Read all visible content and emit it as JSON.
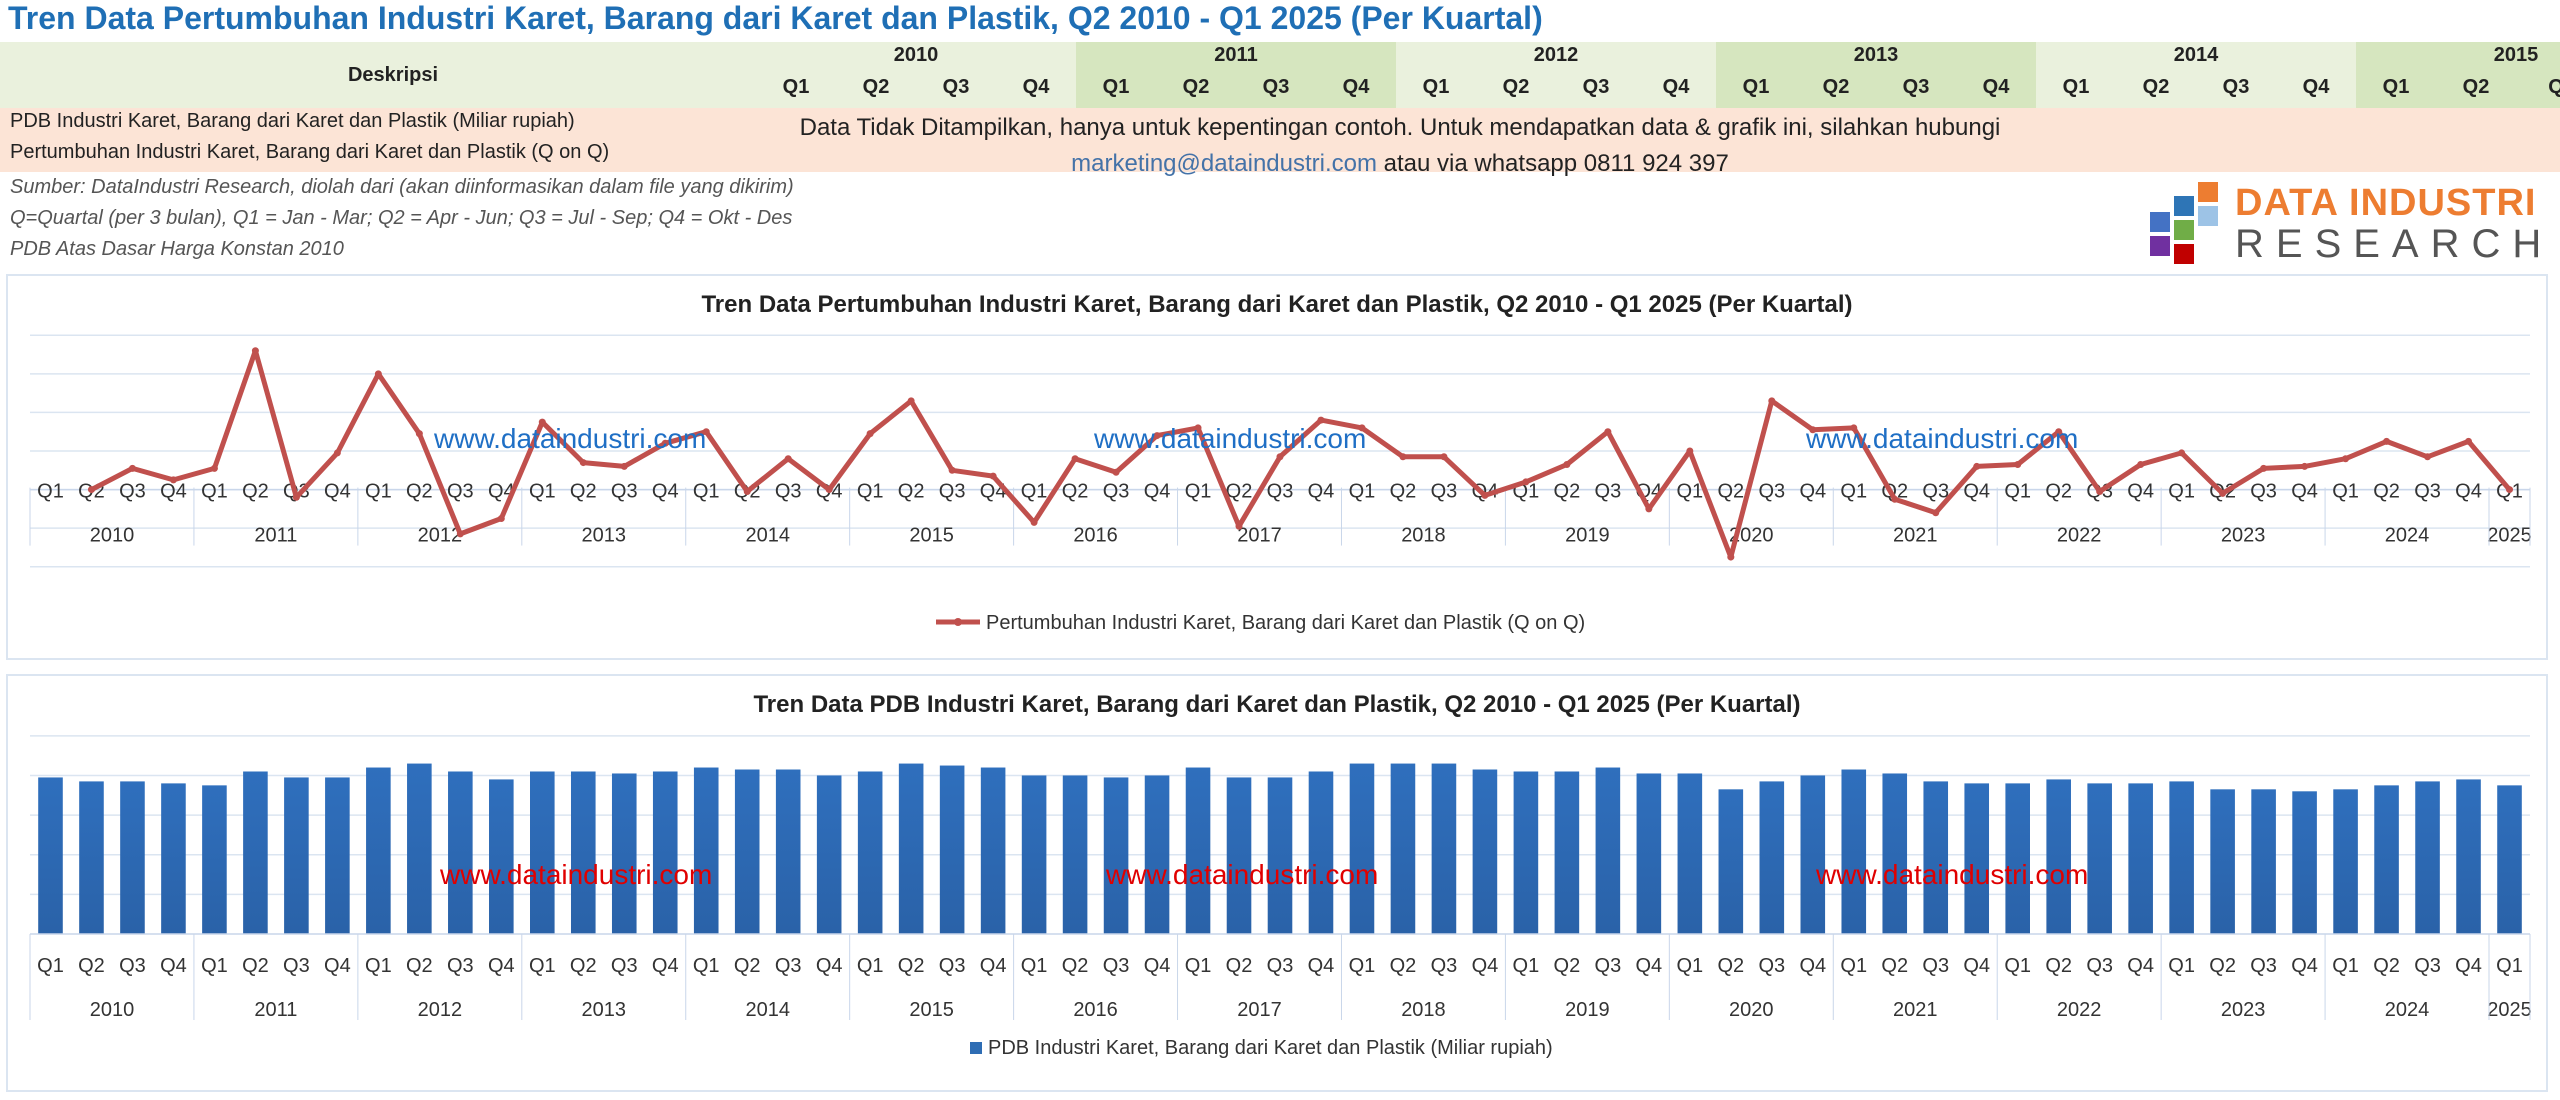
{
  "page_title": "Tren Data Pertumbuhan Industri Karet, Barang dari Karet dan Plastik, Q2 2010 - Q1 2025 (Per Kuartal)",
  "table": {
    "description_header": "Deskripsi",
    "years": [
      {
        "label": "2010",
        "quarters": [
          "Q1",
          "Q2",
          "Q3",
          "Q4"
        ]
      },
      {
        "label": "2011",
        "quarters": [
          "Q1",
          "Q2",
          "Q3",
          "Q4"
        ]
      },
      {
        "label": "2012",
        "quarters": [
          "Q1",
          "Q2",
          "Q3",
          "Q4"
        ]
      },
      {
        "label": "2013",
        "quarters": [
          "Q1",
          "Q2",
          "Q3",
          "Q4"
        ]
      },
      {
        "label": "2014",
        "quarters": [
          "Q1",
          "Q2",
          "Q3",
          "Q4"
        ]
      },
      {
        "label": "2015",
        "quarters": [
          "Q1",
          "Q2",
          "Q"
        ]
      }
    ],
    "rows": [
      "PDB Industri Karet, Barang dari Karet dan Plastik (Miliar rupiah)",
      "Pertumbuhan Industri Karet, Barang dari Karet dan Plastik (Q on Q)"
    ],
    "notice_line1": "Data Tidak Ditampilkan, hanya untuk kepentingan contoh. Untuk mendapatkan data & grafik  ini, silahkan hubungi",
    "notice_email": "marketing@dataindustri.com",
    "notice_line2_rest": " atau via whatsapp 0811 924 397"
  },
  "notes": [
    "Sumber: DataIndustri Research, diolah dari (akan diinformasikan dalam file yang dikirim)",
    "Q=Quartal (per 3 bulan), Q1 = Jan - Mar; Q2 = Apr - Jun; Q3 = Jul - Sep; Q4 = Okt - Des",
    "PDB Atas Dasar Harga Konstan 2010"
  ],
  "logo": {
    "line1": "DATA INDUSTRI",
    "line2": "RESEARCH",
    "colors": [
      "#2e75b6",
      "#ed7d31",
      "#70ad47",
      "#c00000",
      "#7030a0",
      "#4472c4"
    ]
  },
  "watermark_text": "www.dataindustri.com",
  "colors": {
    "line": "#c0504d",
    "bar": "#2e6db4",
    "watermark_blue": "#1f6fc5",
    "watermark_red": "#e00000",
    "title_blue": "#1f6fb5"
  },
  "chart_data": [
    {
      "type": "line",
      "title": "Tren Data Pertumbuhan Industri Karet, Barang dari Karet dan Plastik, Q2 2010 - Q1 2025 (Per Kuartal)",
      "legend": "Pertumbuhan Industri Karet, Barang dari Karet dan Plastik (Q on Q)",
      "year_labels": [
        "2010",
        "2011",
        "2012",
        "2013",
        "2014",
        "2015",
        "2016",
        "2017",
        "2018",
        "2019",
        "2020",
        "2021",
        "2022",
        "2023",
        "2024",
        "2025"
      ],
      "quarter_labels": [
        "Q1",
        "Q2",
        "Q3",
        "Q4",
        "Q1",
        "Q2",
        "Q3",
        "Q4",
        "Q1",
        "Q2",
        "Q3",
        "Q4",
        "Q1",
        "Q2",
        "Q3",
        "Q4",
        "Q1",
        "Q2",
        "Q3",
        "Q4",
        "Q1",
        "Q2",
        "Q3",
        "Q4",
        "Q1",
        "Q2",
        "Q3",
        "Q4",
        "Q1",
        "Q2",
        "Q3",
        "Q4",
        "Q1",
        "Q2",
        "Q3",
        "Q4",
        "Q1",
        "Q2",
        "Q3",
        "Q4",
        "Q1",
        "Q2",
        "Q3",
        "Q4",
        "Q1",
        "Q2",
        "Q3",
        "Q4",
        "Q1",
        "Q2",
        "Q3",
        "Q4",
        "Q1",
        "Q2",
        "Q3",
        "Q4",
        "Q1",
        "Q2",
        "Q3",
        "Q4",
        "Q1"
      ],
      "series": [
        {
          "values": [
            null,
            0,
            1.1,
            0.5,
            1.1,
            7.2,
            -0.4,
            1.9,
            6.0,
            2.9,
            -2.3,
            -1.5,
            3.5,
            1.4,
            1.2,
            2.4,
            3.0,
            -0.1,
            1.6,
            0,
            2.9,
            4.6,
            1.0,
            0.7,
            -1.7,
            1.6,
            0.9,
            2.8,
            3.2,
            -1.9,
            1.7,
            3.6,
            3.2,
            1.7,
            1.7,
            -0.3,
            0.4,
            1.3,
            3.0,
            -1.0,
            2.0,
            -3.5,
            4.6,
            3.1,
            3.2,
            -0.5,
            -1.2,
            1.2,
            1.3,
            3.0,
            -0.1,
            1.3,
            1.9,
            -0.2,
            1.1,
            1.2,
            1.6,
            2.5,
            1.7,
            2.5,
            0
          ]
        }
      ],
      "ylim": [
        -5,
        9
      ]
    },
    {
      "type": "bar",
      "title": "Tren Data PDB Industri Karet, Barang dari Karet dan Plastik, Q2 2010 - Q1 2025 (Per Kuartal)",
      "legend": "PDB Industri Karet, Barang dari Karet dan Plastik (Miliar rupiah)",
      "year_labels": [
        "2010",
        "2011",
        "2012",
        "2013",
        "2014",
        "2015",
        "2016",
        "2017",
        "2018",
        "2019",
        "2020",
        "2021",
        "2022",
        "2023",
        "2024",
        "2025"
      ],
      "quarter_labels": [
        "Q1",
        "Q2",
        "Q3",
        "Q4",
        "Q1",
        "Q2",
        "Q3",
        "Q4",
        "Q1",
        "Q2",
        "Q3",
        "Q4",
        "Q1",
        "Q2",
        "Q3",
        "Q4",
        "Q1",
        "Q2",
        "Q3",
        "Q4",
        "Q1",
        "Q2",
        "Q3",
        "Q4",
        "Q1",
        "Q2",
        "Q3",
        "Q4",
        "Q1",
        "Q2",
        "Q3",
        "Q4",
        "Q1",
        "Q2",
        "Q3",
        "Q4",
        "Q1",
        "Q2",
        "Q3",
        "Q4",
        "Q1",
        "Q2",
        "Q3",
        "Q4",
        "Q1",
        "Q2",
        "Q3",
        "Q4",
        "Q1",
        "Q2",
        "Q3",
        "Q4",
        "Q1",
        "Q2",
        "Q3",
        "Q4",
        "Q1",
        "Q2",
        "Q3",
        "Q4",
        "Q1"
      ],
      "series": [
        {
          "values": [
            79,
            77,
            77,
            76,
            75,
            82,
            79,
            79,
            84,
            86,
            82,
            78,
            82,
            82,
            81,
            82,
            84,
            83,
            83,
            80,
            82,
            86,
            85,
            84,
            80,
            80,
            79,
            80,
            84,
            79,
            79,
            82,
            86,
            86,
            86,
            83,
            82,
            82,
            84,
            81,
            81,
            73,
            77,
            80,
            83,
            81,
            77,
            76,
            76,
            78,
            76,
            76,
            77,
            73,
            73,
            72,
            73,
            75,
            77,
            78,
            75
          ]
        }
      ],
      "ylim": [
        0,
        110
      ]
    }
  ]
}
